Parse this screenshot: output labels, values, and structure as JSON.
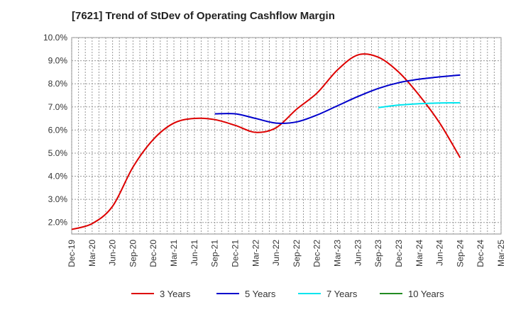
{
  "chart_data": {
    "type": "line",
    "title": "[7621]  Trend of StDev of Operating Cashflow Margin",
    "xlabel": "",
    "ylabel": "",
    "ylim": [
      1.5,
      10.0
    ],
    "y_ticks": [
      "2.0%",
      "3.0%",
      "4.0%",
      "5.0%",
      "6.0%",
      "7.0%",
      "8.0%",
      "9.0%",
      "10.0%"
    ],
    "y_tick_values": [
      2,
      3,
      4,
      5,
      6,
      7,
      8,
      9,
      10
    ],
    "x_ticks": [
      "Dec-19",
      "Mar-20",
      "Jun-20",
      "Sep-20",
      "Dec-20",
      "Mar-21",
      "Jun-21",
      "Sep-21",
      "Dec-21",
      "Mar-22",
      "Jun-22",
      "Sep-22",
      "Dec-22",
      "Mar-23",
      "Jun-23",
      "Sep-23",
      "Dec-23",
      "Mar-24",
      "Jun-24",
      "Sep-24",
      "Dec-24",
      "Mar-25"
    ],
    "grid": true,
    "legend_position": "bottom",
    "series": [
      {
        "name": "3 Years",
        "color": "#dd0000",
        "x": [
          "Dec-19",
          "Mar-20",
          "Jun-20",
          "Sep-20",
          "Dec-20",
          "Mar-21",
          "Jun-21",
          "Sep-21",
          "Dec-21",
          "Mar-22",
          "Jun-22",
          "Sep-22",
          "Dec-22",
          "Mar-23",
          "Jun-23",
          "Sep-23",
          "Dec-23",
          "Mar-24",
          "Jun-24",
          "Sep-24"
        ],
        "values": [
          1.7,
          1.95,
          2.7,
          4.4,
          5.6,
          6.3,
          6.5,
          6.45,
          6.2,
          5.9,
          6.1,
          6.9,
          7.6,
          8.6,
          9.25,
          9.15,
          8.5,
          7.5,
          6.3,
          4.8
        ]
      },
      {
        "name": "5 Years",
        "color": "#0000cc",
        "x": [
          "Sep-21",
          "Dec-21",
          "Mar-22",
          "Jun-22",
          "Sep-22",
          "Dec-22",
          "Mar-23",
          "Jun-23",
          "Sep-23",
          "Dec-23",
          "Mar-24",
          "Jun-24",
          "Sep-24"
        ],
        "values": [
          6.7,
          6.7,
          6.5,
          6.3,
          6.35,
          6.65,
          7.05,
          7.45,
          7.8,
          8.05,
          8.2,
          8.3,
          8.38
        ]
      },
      {
        "name": "7 Years",
        "color": "#00e5ee",
        "x": [
          "Sep-23",
          "Dec-23",
          "Mar-24",
          "Jun-24",
          "Sep-24"
        ],
        "values": [
          6.97,
          7.08,
          7.14,
          7.17,
          7.18
        ]
      },
      {
        "name": "10 Years",
        "color": "#228b22",
        "x": [],
        "values": []
      }
    ]
  }
}
